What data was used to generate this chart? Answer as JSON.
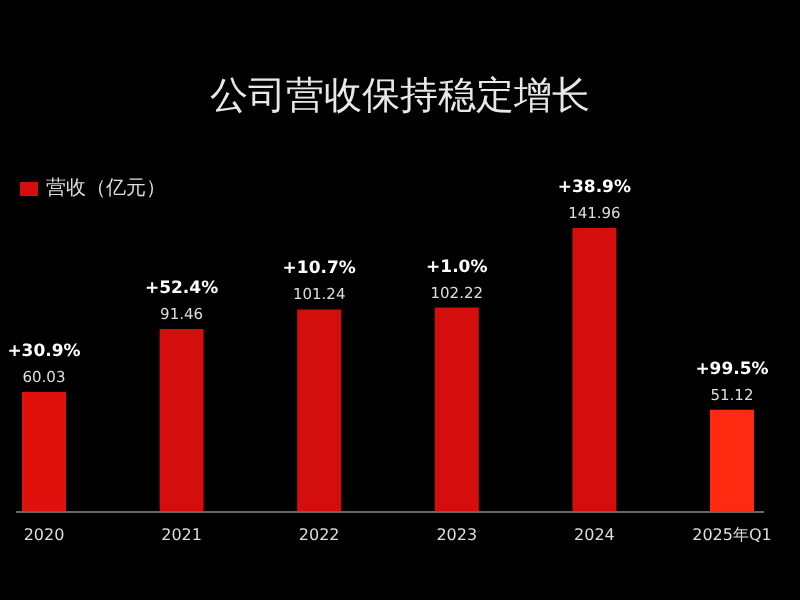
{
  "chart_data": {
    "type": "bar",
    "title": "公司营收保持稳定增长",
    "categories": [
      "2020",
      "2021",
      "2022",
      "2023",
      "2024",
      "2025年Q1"
    ],
    "series": [
      {
        "name": "营收（亿元）",
        "color": "#d40d0d",
        "colors": [
          "#e0100c",
          "#d40d0d",
          "#d40d0d",
          "#d40d0d",
          "#d40d0d",
          "#ff2a10"
        ],
        "values": [
          60.03,
          91.46,
          101.24,
          102.22,
          141.96,
          51.12
        ]
      }
    ],
    "data_labels": true,
    "legend": "top left",
    "grid": false,
    "annotations": [
      "+30.9%",
      "+52.4%",
      "+10.7%",
      "+1.0%",
      "+38.9%",
      "+99.5%"
    ]
  }
}
